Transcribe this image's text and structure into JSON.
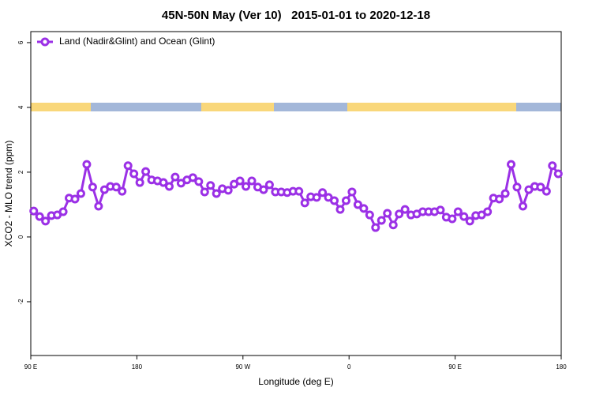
{
  "chart_data": {
    "type": "line",
    "title": "45N-50N May (Ver 10)   2015-01-01 to 2020-12-18",
    "x_label": "Longitude (deg E)",
    "y_label": "XCO2 - MLO trend (ppm)",
    "xlim": [
      90,
      540
    ],
    "ylim": [
      -3.66,
      6.34
    ],
    "xticks": [
      {
        "value": 90,
        "label": "90 E"
      },
      180,
      {
        "value": 270,
        "label": "90 W"
      },
      {
        "value": 360,
        "label": "0"
      },
      {
        "value": 450,
        "label": "90 E"
      },
      {
        "value": 540,
        "label": "180"
      }
    ],
    "yticks": [
      -2,
      0,
      2,
      4,
      6
    ],
    "legend": "top-left",
    "x": [
      92.5,
      97.5,
      102.5,
      107.5,
      112.5,
      117.5,
      122.5,
      127.5,
      132.5,
      137.5,
      142.5,
      147.5,
      152.5,
      157.5,
      162.5,
      167.5,
      172.5,
      177.5,
      182.5,
      187.5,
      192.5,
      197.5,
      202.5,
      207.5,
      212.5,
      217.5,
      222.5,
      227.5,
      232.5,
      237.5,
      242.5,
      247.5,
      252.5,
      257.5,
      262.5,
      267.5,
      272.5,
      277.5,
      282.5,
      287.5,
      292.5,
      297.5,
      302.5,
      307.5,
      312.5,
      317.5,
      322.5,
      327.5,
      332.5,
      337.5,
      342.5,
      347.5,
      352.5,
      357.5,
      362.5,
      367.5,
      372.5,
      377.5,
      382.5,
      387.5,
      392.5,
      397.5,
      402.5,
      407.5,
      412.5,
      417.5,
      422.5,
      427.5,
      432.5,
      437.5,
      442.5,
      447.5,
      452.5,
      457.5,
      462.5,
      467.5,
      472.5,
      477.5,
      482.5,
      487.5,
      492.5,
      497.5,
      502.5,
      507.5,
      512.5,
      517.5,
      522.5,
      527.5,
      532.5,
      537.5
    ],
    "series": [
      {
        "name": "Land (Nadir&Glint) and Ocean (Glint)",
        "color": "#9b30e6",
        "values": [
          0.8,
          0.63,
          0.49,
          0.66,
          0.68,
          0.78,
          1.2,
          1.17,
          1.34,
          2.24,
          1.54,
          0.95,
          1.46,
          1.56,
          1.54,
          1.41,
          2.2,
          1.95,
          1.68,
          2.02,
          1.76,
          1.73,
          1.68,
          1.56,
          1.85,
          1.66,
          1.76,
          1.83,
          1.71,
          1.39,
          1.59,
          1.34,
          1.49,
          1.44,
          1.63,
          1.73,
          1.56,
          1.73,
          1.54,
          1.46,
          1.61,
          1.39,
          1.39,
          1.37,
          1.41,
          1.41,
          1.05,
          1.24,
          1.22,
          1.37,
          1.22,
          1.12,
          0.85,
          1.12,
          1.39,
          1.0,
          0.88,
          0.68,
          0.29,
          0.51,
          0.73,
          0.37,
          0.71,
          0.85,
          0.68,
          0.71,
          0.78,
          0.78,
          0.78,
          0.83,
          0.61,
          0.56,
          0.78,
          0.63,
          0.49,
          0.66,
          0.68,
          0.78,
          1.2,
          1.17,
          1.34,
          2.24,
          1.54,
          0.95,
          1.46,
          1.56,
          1.54,
          1.41,
          2.2,
          1.95
        ]
      }
    ]
  }
}
